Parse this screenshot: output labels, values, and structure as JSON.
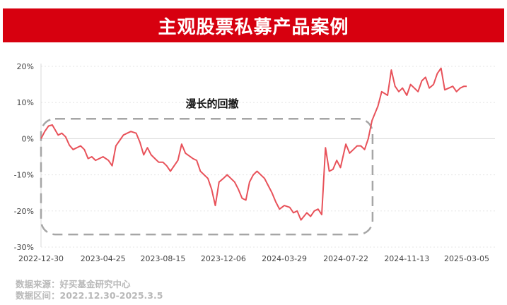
{
  "banner": {
    "title": "主观股票私募产品案例"
  },
  "footer": {
    "source": "数据来源：好买基金研究中心",
    "range": "数据区间：2022.12.30-2025.3.5"
  },
  "colors": {
    "line": "#e8525a",
    "banner": "#d7000f",
    "dashed_box": "#a6a6a6",
    "grid": "#e6e6e6"
  },
  "chart_data": {
    "type": "line",
    "x_ticks": [
      "2022-12-30",
      "2023-04-25",
      "2023-08-15",
      "2023-12-06",
      "2024-03-29",
      "2024-07-22",
      "2024-11-13",
      "2025-03-05"
    ],
    "y_ticks": [
      "20%",
      "10%",
      "0%",
      "-10%",
      "-20%",
      "-30%"
    ],
    "ylim": [
      -30,
      20
    ],
    "grid": "horizontal dotted",
    "annotation": {
      "text": "漫长的回撤",
      "range": [
        "2022-12-30",
        "2024-09-10"
      ]
    },
    "series": [
      {
        "x": [
          "2022-12-30",
          "2023-01-06",
          "2023-01-13",
          "2023-01-20",
          "2023-01-31",
          "2023-02-07",
          "2023-02-14",
          "2023-02-21",
          "2023-02-28",
          "2023-03-07",
          "2023-03-14",
          "2023-03-21",
          "2023-03-28",
          "2023-04-04",
          "2023-04-11",
          "2023-04-18",
          "2023-04-25",
          "2023-05-05",
          "2023-05-12",
          "2023-05-19",
          "2023-05-26",
          "2023-06-02",
          "2023-06-09",
          "2023-06-16",
          "2023-06-26",
          "2023-07-03",
          "2023-07-10",
          "2023-07-17",
          "2023-07-24",
          "2023-07-31",
          "2023-08-07",
          "2023-08-15",
          "2023-08-22",
          "2023-08-29",
          "2023-09-05",
          "2023-09-12",
          "2023-09-19",
          "2023-09-26",
          "2023-10-10",
          "2023-10-17",
          "2023-10-24",
          "2023-10-31",
          "2023-11-07",
          "2023-11-14",
          "2023-11-21",
          "2023-11-28",
          "2023-12-06",
          "2023-12-13",
          "2023-12-20",
          "2023-12-27",
          "2024-01-03",
          "2024-01-10",
          "2024-01-17",
          "2024-01-24",
          "2024-01-31",
          "2024-02-07",
          "2024-02-21",
          "2024-02-28",
          "2024-03-06",
          "2024-03-13",
          "2024-03-20",
          "2024-03-29",
          "2024-04-08",
          "2024-04-15",
          "2024-04-22",
          "2024-04-29",
          "2024-05-10",
          "2024-05-17",
          "2024-05-24",
          "2024-05-31",
          "2024-06-07",
          "2024-06-14",
          "2024-06-21",
          "2024-06-28",
          "2024-07-05",
          "2024-07-12",
          "2024-07-22",
          "2024-07-29",
          "2024-08-05",
          "2024-08-12",
          "2024-08-19",
          "2024-08-26",
          "2024-09-02",
          "2024-09-09",
          "2024-09-20",
          "2024-09-27",
          "2024-10-08",
          "2024-10-15",
          "2024-10-22",
          "2024-10-29",
          "2024-11-05",
          "2024-11-13",
          "2024-11-20",
          "2024-11-27",
          "2024-12-04",
          "2024-12-11",
          "2024-12-18",
          "2024-12-25",
          "2025-01-02",
          "2025-01-09",
          "2025-01-16",
          "2025-01-23",
          "2025-02-07",
          "2025-02-14",
          "2025-02-21",
          "2025-02-28",
          "2025-03-05"
        ],
        "values": [
          0,
          2,
          3.5,
          3.8,
          1,
          1.5,
          0.5,
          -1.8,
          -3,
          -2.5,
          -2,
          -3,
          -5.5,
          -5,
          -6,
          -5.5,
          -5,
          -6,
          -7.5,
          -2,
          -0.5,
          1,
          1.5,
          2,
          1.5,
          -1,
          -4.5,
          -2.5,
          -4.5,
          -5.5,
          -6.5,
          -6.5,
          -7.5,
          -9,
          -7.5,
          -6,
          -1.5,
          -4,
          -5.5,
          -6,
          -9,
          -10,
          -11,
          -14,
          -18.5,
          -12,
          -11,
          -10,
          -11,
          -12,
          -14,
          -16.5,
          -17,
          -12,
          -10,
          -9,
          -11,
          -13,
          -15,
          -17.5,
          -19.5,
          -18.5,
          -19,
          -20.5,
          -20,
          -22.5,
          -20.5,
          -21.5,
          -20,
          -19.5,
          -21,
          -2.5,
          -9,
          -8.5,
          -6,
          -8,
          -1.5,
          -4,
          -3,
          -2,
          -2,
          -3,
          0,
          5,
          9,
          13,
          12,
          19,
          14.5,
          13,
          14,
          12,
          15,
          14,
          13,
          16,
          17,
          14,
          15,
          18,
          19.5,
          13.5,
          14.5,
          13,
          14,
          14.5,
          14.5
        ]
      }
    ]
  }
}
